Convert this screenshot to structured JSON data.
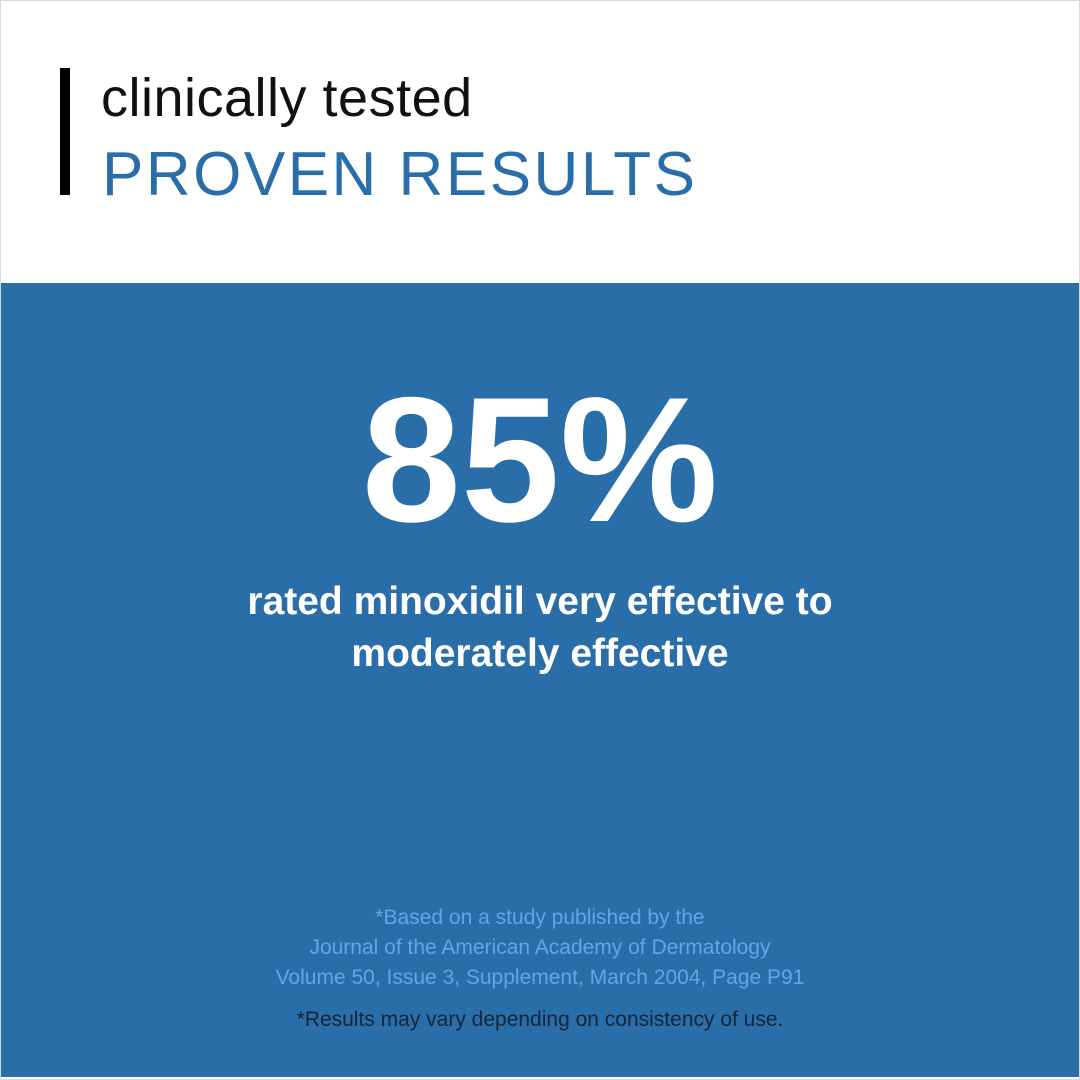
{
  "header": {
    "subtitle": "clinically tested",
    "title": "PROVEN RESULTS"
  },
  "stat": {
    "value": "85%",
    "description_line1": "rated minoxidil very effective to",
    "description_line2": "moderately effective"
  },
  "footnote": {
    "line1": "*Based on a study published by the",
    "line2": "Journal of the American Academy of Dermatology",
    "line3": "Volume 50, Issue 3, Supplement, March 2004, Page P91",
    "disclaimer": "*Results may vary depending on consistency of use."
  },
  "colors": {
    "brand_blue": "#2a6ea9",
    "footnote_blue": "#62a5e6",
    "text_dark": "#15253a"
  }
}
